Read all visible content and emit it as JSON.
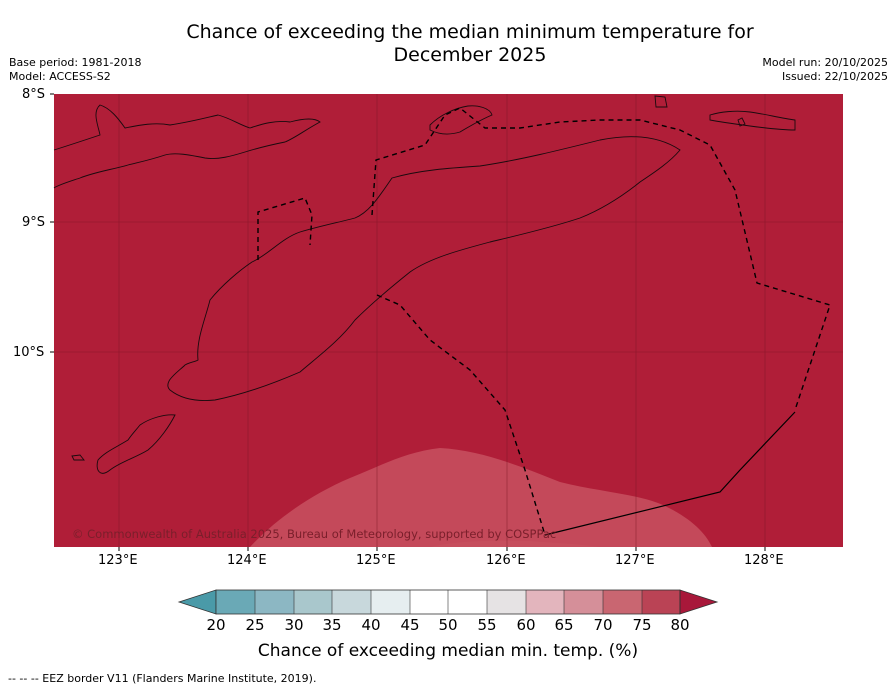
{
  "header": {
    "title_line1": "Chance of exceeding the median minimum temperature for",
    "title_line2": "December 2025",
    "base_period": "Base period: 1981-2018",
    "model": "Model: ACCESS-S2",
    "model_run": "Model run: 20/10/2025",
    "issued": "Issued: 22/10/2025"
  },
  "map": {
    "lat_labels": [
      "8°S",
      "9°S",
      "10°S"
    ],
    "lon_labels": [
      "123°E",
      "124°E",
      "125°E",
      "126°E",
      "127°E",
      "128°E"
    ],
    "copyright": "© Commonwealth of Australia 2025, Bureau of Meteorology, supported by COSPPac",
    "colors": {
      "high": "#b01e38",
      "mid": "#c4495a"
    }
  },
  "colorbar": {
    "ticks": [
      "20",
      "25",
      "30",
      "35",
      "40",
      "45",
      "50",
      "55",
      "60",
      "65",
      "70",
      "75",
      "80"
    ],
    "colors": [
      "#6aa9b6",
      "#8cb7c3",
      "#a9c7cc",
      "#c8d8dc",
      "#e6eef0",
      "#ffffff",
      "#ffffff",
      "#e6e3e4",
      "#e3b5bd",
      "#d58f99",
      "#c96671",
      "#ba4355"
    ],
    "low_extend_color": "#4a9aa8",
    "high_extend_color": "#a8183a",
    "label": "Chance of exceeding median min. temp. (%)"
  },
  "footnote": "--  --  -- EEZ border V11 (Flanders Marine Institute, 2019)."
}
